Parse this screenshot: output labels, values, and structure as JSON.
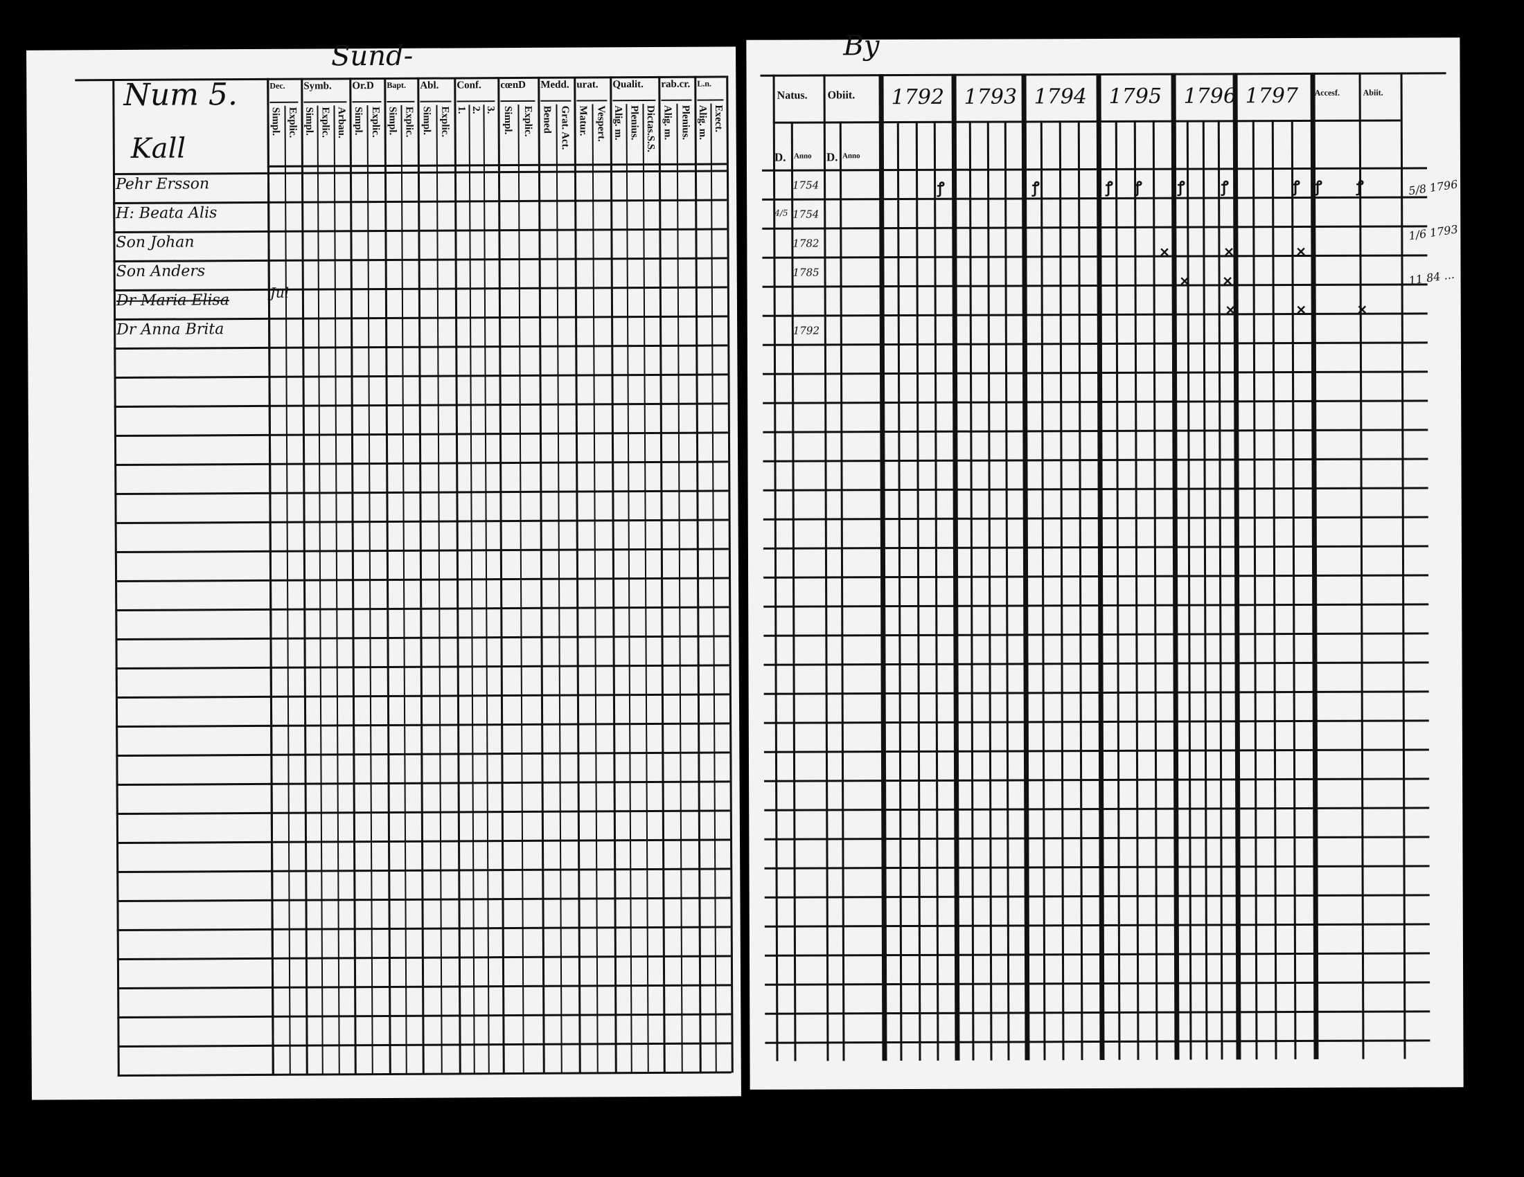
{
  "title": {
    "left": "Sund-",
    "right": "By"
  },
  "left": {
    "number": "Num 5.",
    "place": "Kall",
    "household": [
      {
        "name": "Pehr Ersson",
        "struck": false
      },
      {
        "name": "H: Beata Alis",
        "struck": false
      },
      {
        "name": "Son Johan",
        "struck": false
      },
      {
        "name": "Son Anders",
        "struck": false
      },
      {
        "name": "Dr Maria Elisa",
        "struck": true
      },
      {
        "name": "Dr Anna Brita",
        "struck": false
      }
    ],
    "column_groups": [
      {
        "label": "Dec.",
        "subs": [
          "Simpl.",
          "Explic."
        ]
      },
      {
        "label": "Symb.",
        "subs": [
          "Simpl.",
          "Explic.",
          "Arbau."
        ]
      },
      {
        "label": "Or.D",
        "subs": [
          "Simpl.",
          "Explic."
        ]
      },
      {
        "label": "Bapt.",
        "subs": [
          "Simpl.",
          "Explic."
        ]
      },
      {
        "label": "Abl.",
        "subs": [
          "Simpl.",
          "Explic."
        ]
      },
      {
        "label": "Conf.",
        "subs": [
          "1.",
          "2.",
          "3."
        ]
      },
      {
        "label": "cœnD",
        "subs": [
          "Simpl.",
          "Explic."
        ]
      },
      {
        "label": "Medd.",
        "subs": [
          "Bened",
          "Grat. Act."
        ]
      },
      {
        "label": "urat.",
        "subs": [
          "Matur.",
          "Vespert."
        ]
      },
      {
        "label": "Qualit.",
        "subs": [
          "Alig. m.",
          "Plenius.",
          "Dictas.S.S."
        ]
      },
      {
        "label": "rab.cr.",
        "subs": [
          "Alig. m.",
          "Plenius."
        ]
      },
      {
        "label": "L.n.",
        "subs": [
          "Alig. m.",
          "Exect."
        ]
      }
    ],
    "entry_mark": "Jul"
  },
  "right": {
    "headers": [
      "Natus.",
      "Obiit.",
      "1792",
      "1793",
      "1794",
      "1795",
      "1796",
      "1797",
      "Accesf.",
      "Abiit."
    ],
    "sub_headers": {
      "natus_day": "D.",
      "natus_year": "Anno",
      "obiit_day": "D.",
      "obiit_year": "Anno"
    },
    "birth_years": [
      "1754",
      "1754",
      "1782",
      "1785",
      "",
      "1792"
    ],
    "birth_days": [
      "",
      "4/5",
      "",
      "",
      "",
      ""
    ],
    "margin_notes": [
      "5/8 1796",
      "1/6 1793",
      "11 84 ..."
    ]
  },
  "colors": {
    "paper": "#f3f3f1",
    "ink": "#111111",
    "background": "#000000"
  }
}
